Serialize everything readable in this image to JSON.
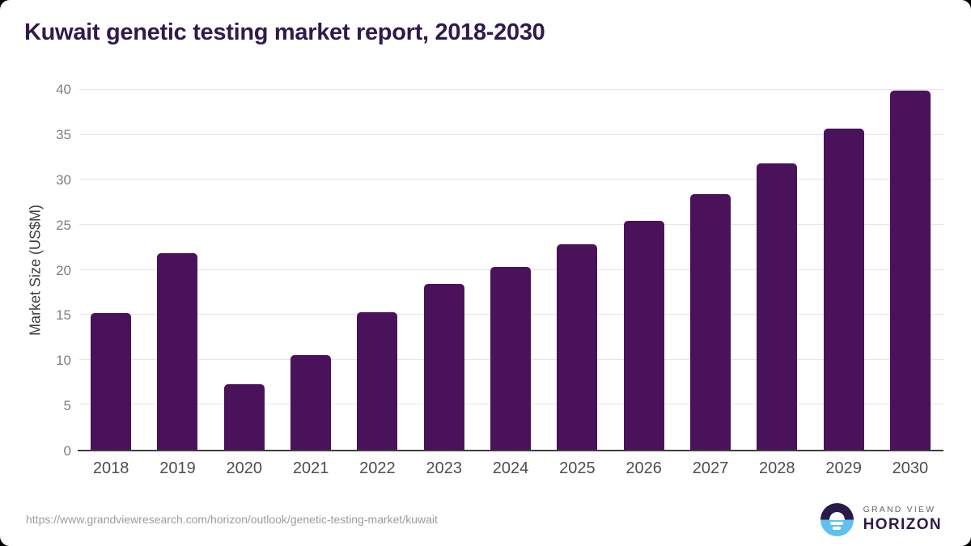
{
  "title": "Kuwait genetic testing market report, 2018-2030",
  "chart_data": {
    "type": "bar",
    "categories": [
      "2018",
      "2019",
      "2020",
      "2021",
      "2022",
      "2023",
      "2024",
      "2025",
      "2026",
      "2027",
      "2028",
      "2029",
      "2030"
    ],
    "values": [
      15.2,
      21.8,
      7.3,
      10.5,
      15.3,
      18.4,
      20.3,
      22.8,
      25.4,
      28.4,
      31.8,
      35.7,
      39.9
    ],
    "title": "Kuwait genetic testing market report, 2018-2030",
    "xlabel": "",
    "ylabel": "Market Size (US$M)",
    "ylim": [
      0,
      40
    ],
    "yticks": [
      0,
      5,
      10,
      15,
      20,
      25,
      30,
      35,
      40
    ],
    "grid": true,
    "legend": "none"
  },
  "colors": {
    "bar": "#4a125a",
    "title_text": "#301a4d",
    "gridline": "#e5e5e5",
    "axis_line": "#3d3d3d",
    "ytick_text": "#7f7f7f",
    "xtick_text": "#4d4d4d",
    "url_text": "#9c9c9c",
    "logo_dark": "#291a4b",
    "logo_blue": "#5ec1ef"
  },
  "footer": {
    "source_url": "https://www.grandviewresearch.com/horizon/outlook/genetic-testing-market/kuwait",
    "logo_line1": "GRAND VIEW",
    "logo_line2": "HORIZON"
  }
}
